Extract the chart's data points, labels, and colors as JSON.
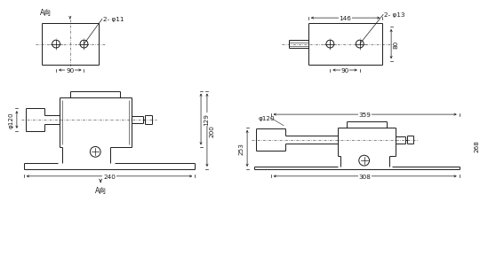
{
  "bg_color": "#ffffff",
  "line_color": "#1a1a1a",
  "dim_color": "#1a1a1a",
  "cl_color": "#555555",
  "views": {
    "front": {
      "ox": 12,
      "oy": 100,
      "label": "A向",
      "dim_240": 240,
      "dim_200": 200,
      "dim_129": 129,
      "dim_phi120": "φ120"
    },
    "side": {
      "ox": 275,
      "oy": 100,
      "dim_359": 359,
      "dim_308": 308,
      "dim_268": 268,
      "dim_253": 253,
      "dim_phi120": "φ120"
    },
    "bl": {
      "ox": 35,
      "oy": 228,
      "label": "A向",
      "dim_90": 90,
      "bolt_label": "2- φ11"
    },
    "br": {
      "ox": 340,
      "oy": 228,
      "dim_146": 146,
      "dim_90": 90,
      "dim_80": 80,
      "bolt_label": "2- φ13"
    }
  }
}
